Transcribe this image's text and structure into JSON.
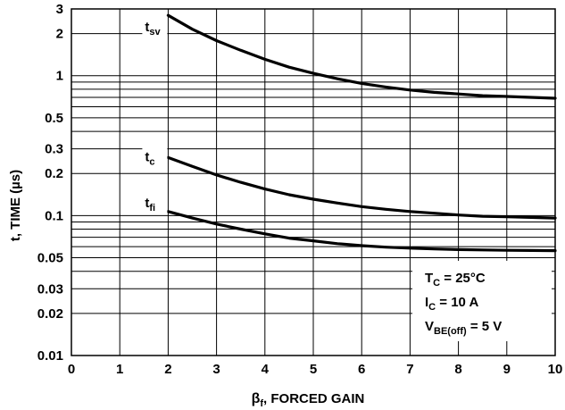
{
  "chart_data": {
    "type": "line",
    "title": "",
    "xlabel": {
      "main": "β",
      "sub": "f",
      "rest": ", FORCED GAIN"
    },
    "ylabel": "t, TIME (µs)",
    "x_scale": "linear",
    "y_scale": "log",
    "xlim": [
      0,
      10
    ],
    "ylim": [
      0.01,
      3
    ],
    "x_ticks": [
      0,
      1,
      2,
      3,
      4,
      5,
      6,
      7,
      8,
      9,
      10
    ],
    "x_tick_labels": [
      "0",
      "1",
      "2",
      "3",
      "4",
      "5",
      "6",
      "7",
      "8",
      "9",
      "10"
    ],
    "y_labeled_ticks": [
      {
        "value": 0.01,
        "label": "0.01"
      },
      {
        "value": 0.02,
        "label": "0.02"
      },
      {
        "value": 0.03,
        "label": "0.03"
      },
      {
        "value": 0.05,
        "label": "0.05"
      },
      {
        "value": 0.1,
        "label": "0.1"
      },
      {
        "value": 0.2,
        "label": "0.2"
      },
      {
        "value": 0.3,
        "label": "0.3"
      },
      {
        "value": 0.5,
        "label": "0.5"
      },
      {
        "value": 1,
        "label": "1"
      },
      {
        "value": 2,
        "label": "2"
      },
      {
        "value": 3,
        "label": "3"
      }
    ],
    "y_gridlines": [
      0.01,
      0.02,
      0.03,
      0.04,
      0.05,
      0.06,
      0.07,
      0.08,
      0.09,
      0.1,
      0.2,
      0.3,
      0.4,
      0.5,
      0.6,
      0.7,
      0.8,
      0.9,
      1,
      2,
      3
    ],
    "grid": true,
    "series": [
      {
        "label_main": "t",
        "label_sub": "sv",
        "x": [
          2,
          2.5,
          3,
          3.5,
          4,
          4.5,
          5,
          5.5,
          6,
          6.5,
          7,
          7.5,
          8,
          8.5,
          9,
          9.5,
          10
        ],
        "y": [
          2.7,
          2.15,
          1.78,
          1.52,
          1.31,
          1.15,
          1.04,
          0.95,
          0.88,
          0.83,
          0.79,
          0.76,
          0.74,
          0.72,
          0.71,
          0.7,
          0.69
        ]
      },
      {
        "label_main": "t",
        "label_sub": "c",
        "x": [
          2,
          2.5,
          3,
          3.5,
          4,
          4.5,
          5,
          5.5,
          6,
          6.5,
          7,
          7.5,
          8,
          8.5,
          9,
          9.5,
          10
        ],
        "y": [
          0.26,
          0.225,
          0.195,
          0.173,
          0.155,
          0.141,
          0.131,
          0.123,
          0.116,
          0.111,
          0.107,
          0.104,
          0.101,
          0.099,
          0.098,
          0.097,
          0.096
        ]
      },
      {
        "label_main": "t",
        "label_sub": "fi",
        "x": [
          2,
          2.5,
          3,
          3.5,
          4,
          4.5,
          5,
          5.5,
          6,
          6.5,
          7,
          7.5,
          8,
          8.5,
          9,
          9.5,
          10
        ],
        "y": [
          0.107,
          0.096,
          0.087,
          0.08,
          0.074,
          0.069,
          0.066,
          0.063,
          0.061,
          0.0595,
          0.0585,
          0.0578,
          0.0572,
          0.0568,
          0.0565,
          0.0563,
          0.0562
        ]
      }
    ],
    "conditions": [
      {
        "main": "T",
        "sub": "C",
        "rest": " = 25°C"
      },
      {
        "main": "I",
        "sub": "C",
        "rest": " = 10 A"
      },
      {
        "main": "V",
        "sub": "BE(off)",
        "rest": " = 5 V"
      }
    ]
  }
}
